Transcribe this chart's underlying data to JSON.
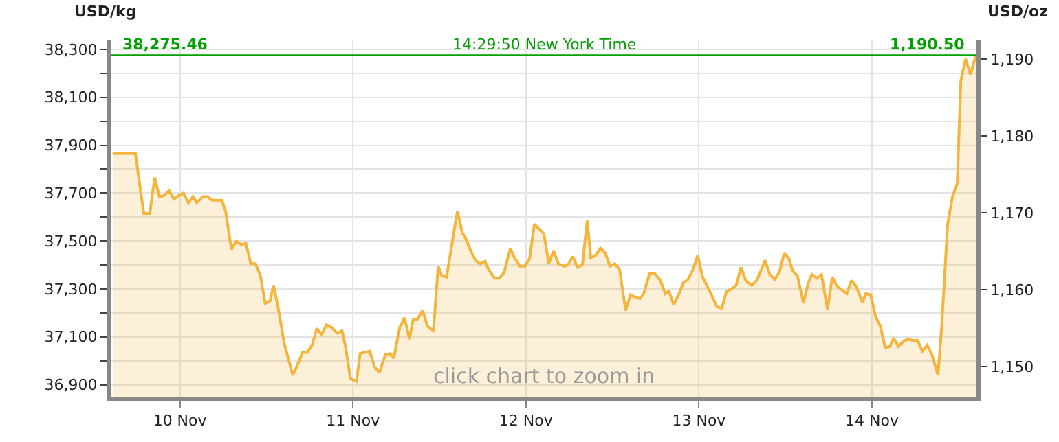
{
  "chart_data": {
    "type": "area",
    "ylabel": "USD/kg",
    "y2label": "USD/oz",
    "x": [
      "--11-09T14:40",
      "--11-09T17:50",
      "--11-09T18:30",
      "--11-09T19:00",
      "--11-09T19:50",
      "--11-09T20:30",
      "--11-09T21:10",
      "--11-09T21:50",
      "--11-09T22:30",
      "--11-09T23:10",
      "--11-09T23:50",
      "--11-10T00:30",
      "--11-10T01:10",
      "--11-10T01:50",
      "--11-10T02:20",
      "--11-10T03:10",
      "--11-10T03:50",
      "--11-10T04:30",
      "--11-10T05:00",
      "--11-10T05:50",
      "--11-10T06:20",
      "--11-10T07:10",
      "--11-10T07:50",
      "--11-10T08:30",
      "--11-10T09:10",
      "--11-10T09:50",
      "--11-10T10:30",
      "--11-10T11:10",
      "--11-10T11:50",
      "--11-10T12:30",
      "--11-10T13:00",
      "--11-10T13:40",
      "--11-10T14:30",
      "--11-10T15:10",
      "--11-10T15:40",
      "--11-10T16:20",
      "--11-10T17:00",
      "--11-10T17:40",
      "--11-10T18:20",
      "--11-10T19:00",
      "--11-10T19:40",
      "--11-10T20:20",
      "--11-10T21:00",
      "--11-10T21:50",
      "--11-10T22:30",
      "--11-10T23:00",
      "--11-10T23:40",
      "--11-11T00:30",
      "--11-11T01:00",
      "--11-11T01:40",
      "--11-11T02:20",
      "--11-11T03:00",
      "--11-11T03:40",
      "--11-11T04:30",
      "--11-11T05:10",
      "--11-11T05:40",
      "--11-11T06:30",
      "--11-11T07:10",
      "--11-11T07:50",
      "--11-11T08:20",
      "--11-11T09:00",
      "--11-11T09:40",
      "--11-11T10:20",
      "--11-11T11:10",
      "--11-11T11:50",
      "--11-11T12:20",
      "--11-11T13:00",
      "--11-11T13:40",
      "--11-11T14:30",
      "--11-11T15:10",
      "--11-11T15:40",
      "--11-11T16:20",
      "--11-11T17:00",
      "--11-11T17:40",
      "--11-11T18:20",
      "--11-11T18:50",
      "--11-11T19:40",
      "--11-11T20:20",
      "--11-11T21:00",
      "--11-11T21:50",
      "--11-11T22:20",
      "--11-11T23:10",
      "--11-11T23:50",
      "--11-12T00:30",
      "--11-12T01:10",
      "--11-12T01:50",
      "--11-12T02:30",
      "--11-12T03:10",
      "--11-12T03:50",
      "--11-12T04:30",
      "--11-12T05:20",
      "--11-12T05:50",
      "--11-12T06:30",
      "--11-12T07:10",
      "--11-12T07:50",
      "--11-12T08:30",
      "--11-12T09:00",
      "--11-12T09:40",
      "--11-12T10:20",
      "--11-12T11:00",
      "--11-12T11:40",
      "--11-12T12:20",
      "--11-12T13:00",
      "--11-12T13:50",
      "--11-12T14:30",
      "--11-12T15:10",
      "--11-12T15:50",
      "--11-12T16:20",
      "--11-12T17:10",
      "--11-12T17:50",
      "--11-12T18:40",
      "--11-12T19:20",
      "--11-12T19:50",
      "--11-12T20:30",
      "--11-12T21:10",
      "--11-12T21:50",
      "--11-12T22:30",
      "--11-12T23:10",
      "--11-12T23:50",
      "--11-13T00:30",
      "--11-13T01:10",
      "--11-13T01:40",
      "--11-13T02:30",
      "--11-13T03:10",
      "--11-13T03:50",
      "--11-13T04:30",
      "--11-13T05:10",
      "--11-13T05:50",
      "--11-13T06:30",
      "--11-13T07:20",
      "--11-13T08:00",
      "--11-13T08:40",
      "--11-13T09:10",
      "--11-13T09:50",
      "--11-13T10:30",
      "--11-13T11:10",
      "--11-13T11:50",
      "--11-13T12:30",
      "--11-13T13:00",
      "--11-13T13:40",
      "--11-13T14:30",
      "--11-13T15:10",
      "--11-13T15:40",
      "--11-13T16:20",
      "--11-13T17:00",
      "--11-13T17:50",
      "--11-13T18:30",
      "--11-13T19:10",
      "--11-13T19:40",
      "--11-13T20:30",
      "--11-13T21:10",
      "--11-13T21:50",
      "--11-13T22:40",
      "--11-13T23:10",
      "--11-13T23:50",
      "--11-14T00:30",
      "--11-14T01:10",
      "--11-14T01:50",
      "--11-14T02:30",
      "--11-14T03:00",
      "--11-14T03:40",
      "--11-14T04:20",
      "--11-14T05:00",
      "--11-14T05:40",
      "--11-14T06:20",
      "--11-14T07:00",
      "--11-14T07:40",
      "--11-14T08:20",
      "--11-14T09:10",
      "--11-14T09:40",
      "--11-14T10:30",
      "--11-14T11:10",
      "--11-14T11:50",
      "--11-14T12:20",
      "--11-14T13:00",
      "--11-14T13:40",
      "--11-14T14:20",
      "--11-14T14:30"
    ],
    "series": [
      {
        "color": "#f5b43c",
        "values": [
          37865,
          37865,
          37720,
          37615,
          37615,
          37765,
          37685,
          37690,
          37710,
          37675,
          37690,
          37700,
          37660,
          37685,
          37660,
          37685,
          37685,
          37670,
          37670,
          37670,
          37625,
          37465,
          37500,
          37485,
          37490,
          37405,
          37405,
          37355,
          37240,
          37250,
          37315,
          37215,
          37070,
          36995,
          36940,
          36985,
          37035,
          37035,
          37065,
          37135,
          37110,
          37150,
          37140,
          37115,
          37125,
          37055,
          36925,
          36915,
          37030,
          37035,
          37040,
          36975,
          36950,
          37025,
          37030,
          37010,
          37140,
          37180,
          37090,
          37170,
          37175,
          37210,
          37145,
          37125,
          37395,
          37355,
          37350,
          37475,
          37625,
          37535,
          37510,
          37460,
          37420,
          37405,
          37415,
          37380,
          37345,
          37345,
          37370,
          37470,
          37435,
          37395,
          37395,
          37425,
          37570,
          37550,
          37530,
          37405,
          37460,
          37405,
          37395,
          37400,
          37435,
          37390,
          37400,
          37585,
          37430,
          37440,
          37470,
          37450,
          37395,
          37405,
          37380,
          37210,
          37275,
          37265,
          37260,
          37280,
          37365,
          37365,
          37335,
          37280,
          37290,
          37235,
          37275,
          37325,
          37340,
          37380,
          37440,
          37350,
          37310,
          37280,
          37225,
          37220,
          37290,
          37300,
          37315,
          37390,
          37335,
          37315,
          37335,
          37380,
          37420,
          37360,
          37340,
          37370,
          37450,
          37425,
          37375,
          37355,
          37240,
          37325,
          37360,
          37345,
          37360,
          37215,
          37350,
          37310,
          37300,
          37280,
          37335,
          37310,
          37245,
          37280,
          37275,
          37185,
          37145,
          37055,
          37060,
          37095,
          37060,
          37080,
          37090,
          37085,
          37085,
          37040,
          37065,
          37025,
          36940,
          37140,
          37570,
          37685,
          37740,
          38170,
          38260,
          38195,
          38265,
          38275
        ]
      }
    ],
    "xlim": [
      "--11-09T14:30",
      "--11-14T14:30"
    ],
    "xticks": [
      {
        "value": "--11-10",
        "label": "10 Nov"
      },
      {
        "value": "--11-11",
        "label": "11 Nov"
      },
      {
        "value": "--11-12",
        "label": "12 Nov"
      },
      {
        "value": "--11-13",
        "label": "13 Nov"
      },
      {
        "value": "--11-14",
        "label": "14 Nov"
      }
    ],
    "ylim": [
      36850,
      38340
    ],
    "yticks": [
      {
        "value": 36900,
        "label": "36,900"
      },
      {
        "value": 37000,
        "label": null
      },
      {
        "value": 37100,
        "label": "37,100"
      },
      {
        "value": 37200,
        "label": null
      },
      {
        "value": 37300,
        "label": "37,300"
      },
      {
        "value": 37400,
        "label": null
      },
      {
        "value": 37500,
        "label": "37,500"
      },
      {
        "value": 37600,
        "label": null
      },
      {
        "value": 37700,
        "label": "37,700"
      },
      {
        "value": 37800,
        "label": null
      },
      {
        "value": 37900,
        "label": "37,900"
      },
      {
        "value": 38000,
        "label": null
      },
      {
        "value": 38100,
        "label": "38,100"
      },
      {
        "value": 38200,
        "label": null
      },
      {
        "value": 38300,
        "label": "38,300"
      }
    ],
    "y2lim": [
      1146.1,
      1192.5
    ],
    "y2ticks": [
      {
        "value": 1150,
        "label": "1,150"
      },
      {
        "value": 1160,
        "label": "1,160"
      },
      {
        "value": 1170,
        "label": "1,170"
      },
      {
        "value": 1180,
        "label": "1,180"
      },
      {
        "value": 1190,
        "label": "1,190"
      }
    ],
    "ref_lines": [
      {
        "axis": "y",
        "value": 38275.46,
        "label": "38,275.46",
        "color": "#00a000"
      }
    ],
    "annotations": [
      "14:29:50 New York Time",
      "click chart to zoom in",
      "1,190.50"
    ],
    "grid": true
  }
}
